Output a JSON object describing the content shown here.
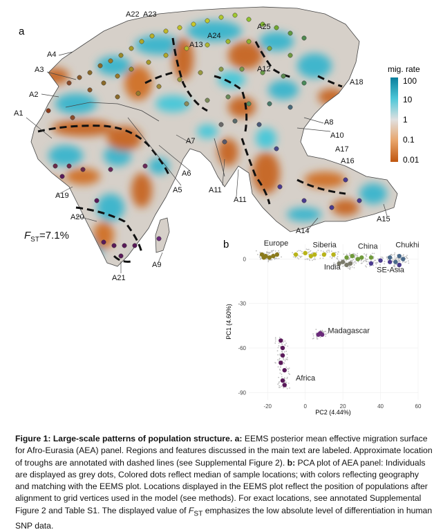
{
  "panel_a": {
    "letter": "a",
    "region_labels": [
      "A1",
      "A2",
      "A3",
      "A4",
      "A5",
      "A6",
      "A7",
      "A8",
      "A9",
      "A10",
      "A11",
      "A11",
      "A12",
      "A13",
      "A14",
      "A15",
      "A16",
      "A17",
      "A18",
      "A19",
      "A20",
      "A21",
      "A22",
      "A23",
      "A24",
      "A25"
    ],
    "fst_symbol": "F",
    "fst_sub": "ST",
    "fst_value": "=7.1%",
    "legend": {
      "title": "mig. rate",
      "ticks": [
        "100",
        "10",
        "1",
        "0.1",
        "0.01"
      ],
      "colors": [
        "#0a7e9c",
        "#4cc7d8",
        "#d3d3d3",
        "#e8a46a",
        "#c0560f"
      ]
    },
    "palette": {
      "ocean": "#ffffff",
      "low": "#c76a2a",
      "mid": "#d9d9d9",
      "high": "#3fb6cc"
    }
  },
  "panel_b": {
    "letter": "b",
    "chart_data": {
      "type": "scatter",
      "xlabel": "PC2 (4.44%)",
      "ylabel": "PC1 (4.60%)",
      "xlim": [
        -30,
        60
      ],
      "ylim": [
        -95,
        10
      ],
      "xticks": [
        "-20",
        "0",
        "20",
        "40",
        "60"
      ],
      "yticks": [
        "0",
        "-30",
        "-60",
        "-90"
      ],
      "annotations": [
        "Europe",
        "Siberia",
        "China",
        "Chukhi",
        "India",
        "SE-Asia",
        "Madagascar",
        "Africa"
      ],
      "series": [
        {
          "name": "Europe",
          "color": "#8a7a1c",
          "points": [
            [
              -23,
              3
            ],
            [
              -21,
              2
            ],
            [
              -19,
              1
            ],
            [
              -17,
              2
            ],
            [
              -15,
              3
            ],
            [
              -22,
              1
            ]
          ]
        },
        {
          "name": "Siberia",
          "color": "#b8b41a",
          "points": [
            [
              -5,
              3
            ],
            [
              0,
              4
            ],
            [
              5,
              3
            ],
            [
              10,
              3
            ],
            [
              15,
              3
            ],
            [
              3,
              2
            ]
          ]
        },
        {
          "name": "China",
          "color": "#6f9a3a",
          "points": [
            [
              25,
              2
            ],
            [
              30,
              1
            ],
            [
              35,
              1
            ],
            [
              28,
              0
            ],
            [
              22,
              1
            ]
          ]
        },
        {
          "name": "Chukhi",
          "color": "#4a6a8a",
          "points": [
            [
              45,
              1
            ],
            [
              50,
              2
            ],
            [
              52,
              0
            ],
            [
              48,
              -2
            ]
          ]
        },
        {
          "name": "India",
          "color": "#7a7a6a",
          "points": [
            [
              18,
              -3
            ],
            [
              20,
              -2
            ],
            [
              22,
              -4
            ],
            [
              24,
              -3
            ]
          ]
        },
        {
          "name": "SE-Asia",
          "color": "#4b3b8f",
          "points": [
            [
              40,
              -1
            ],
            [
              45,
              -2
            ],
            [
              50,
              -4
            ],
            [
              35,
              -3
            ]
          ]
        },
        {
          "name": "Madagascar",
          "color": "#6a2a7a",
          "points": [
            [
              8,
              -50
            ],
            [
              9,
              -51
            ],
            [
              7,
              -51
            ]
          ]
        },
        {
          "name": "Africa",
          "color": "#5a1a5a",
          "points": [
            [
              -13,
              -55
            ],
            [
              -12,
              -65
            ],
            [
              -11,
              -75
            ],
            [
              -12,
              -82
            ],
            [
              -11,
              -85
            ],
            [
              -13,
              -70
            ],
            [
              -12,
              -60
            ]
          ]
        }
      ]
    }
  },
  "caption": {
    "title": "Figure 1: Large-scale patterns of population structure.",
    "a_label": "a:",
    "a_text": " EEMS posterior mean effective migration surface for Afro-Eurasia (AEA) panel. Regions and features discussed in the main text are labeled. Approximate location of troughs are annotated with dashed lines (see Supplemental Figure 2). ",
    "b_label": "b:",
    "b_text": " PCA plot of AEA panel: Individuals are displayed as grey dots, Colored dots reflect median of sample locations; with colors reflecting geography and matching with the EEMS plot. Locations displayed in the EEMS plot reflect the position of populations after alignment to grid vertices used in the model (see methods). For exact locations, see annotated Supplemental Figure 2 and Table S1.  The displayed value of ",
    "fst_italic": "F",
    "fst_sub": "ST",
    "tail": " emphasizes the low absolute level of differentiation in human SNP data."
  }
}
